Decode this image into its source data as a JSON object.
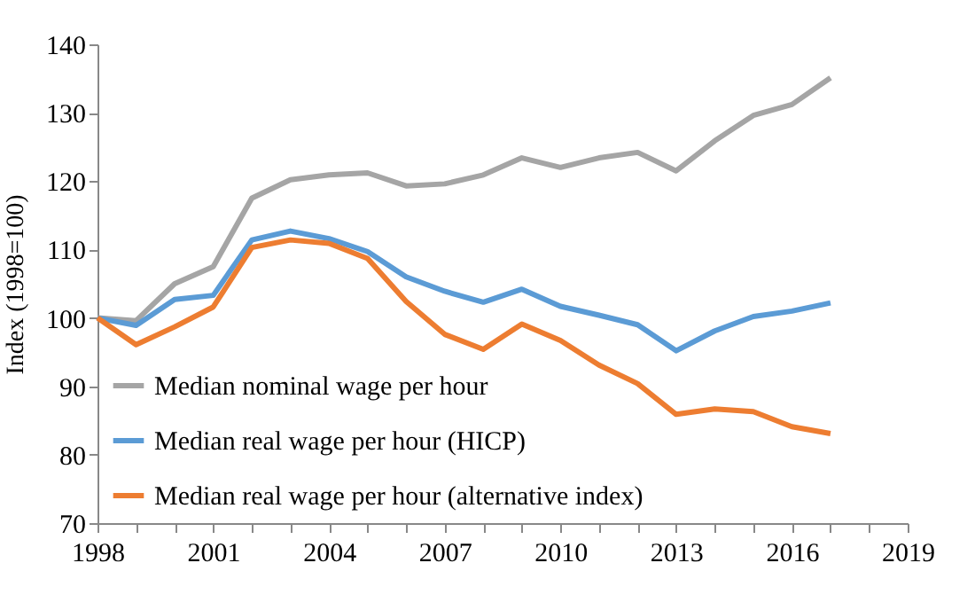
{
  "chart_data": {
    "type": "line",
    "ylabel": "Index (1998=100)",
    "x": [
      1998,
      1999,
      2000,
      2001,
      2002,
      2003,
      2004,
      2005,
      2006,
      2007,
      2008,
      2009,
      2010,
      2011,
      2012,
      2013,
      2014,
      2015,
      2016,
      2017
    ],
    "series": [
      {
        "name": "Median nominal wage per hour",
        "color": "#a5a5a5",
        "values": [
          100,
          99.6,
          105,
          107.5,
          117.5,
          120.2,
          120.9,
          121.2,
          119.3,
          119.6,
          120.9,
          123.4,
          122,
          123.4,
          124.2,
          121.5,
          125.9,
          129.6,
          131.2,
          135.1
        ]
      },
      {
        "name": "Median real wage per hour (HICP)",
        "color": "#5b9bd5",
        "values": [
          100,
          98.9,
          102.7,
          103.3,
          111.4,
          112.7,
          111.6,
          109.7,
          106,
          103.9,
          102.3,
          104.2,
          101.7,
          100.4,
          99,
          95.2,
          98.1,
          100.2,
          101,
          102.2
        ]
      },
      {
        "name": "Median real wage per hour (alternative index)",
        "color": "#ed7d31",
        "values": [
          100,
          96.1,
          98.7,
          101.6,
          110.3,
          111.4,
          110.9,
          108.7,
          102.4,
          97.6,
          95.4,
          99.1,
          96.7,
          93.1,
          90.4,
          85.9,
          86.7,
          86.3,
          84.1,
          83.1
        ]
      }
    ],
    "xlim": [
      1998,
      2019
    ],
    "xticks": [
      1998,
      {
        "value": 1999,
        "label": null
      },
      {
        "value": 2000,
        "label": null
      },
      2001,
      {
        "value": 2002,
        "label": null
      },
      {
        "value": 2003,
        "label": null
      },
      2004,
      {
        "value": 2005,
        "label": null
      },
      {
        "value": 2006,
        "label": null
      },
      2007,
      {
        "value": 2008,
        "label": null
      },
      {
        "value": 2009,
        "label": null
      },
      2010,
      {
        "value": 2011,
        "label": null
      },
      {
        "value": 2012,
        "label": null
      },
      2013,
      {
        "value": 2014,
        "label": null
      },
      {
        "value": 2015,
        "label": null
      },
      2016,
      {
        "value": 2017,
        "label": null
      },
      {
        "value": 2018,
        "label": null
      },
      2019
    ],
    "ylim": [
      70,
      140
    ],
    "yticks": [
      70,
      80,
      90,
      100,
      110,
      120,
      130,
      140
    ],
    "grid": false,
    "legend": "bottom left",
    "marker": "none",
    "line_style": "solid"
  }
}
